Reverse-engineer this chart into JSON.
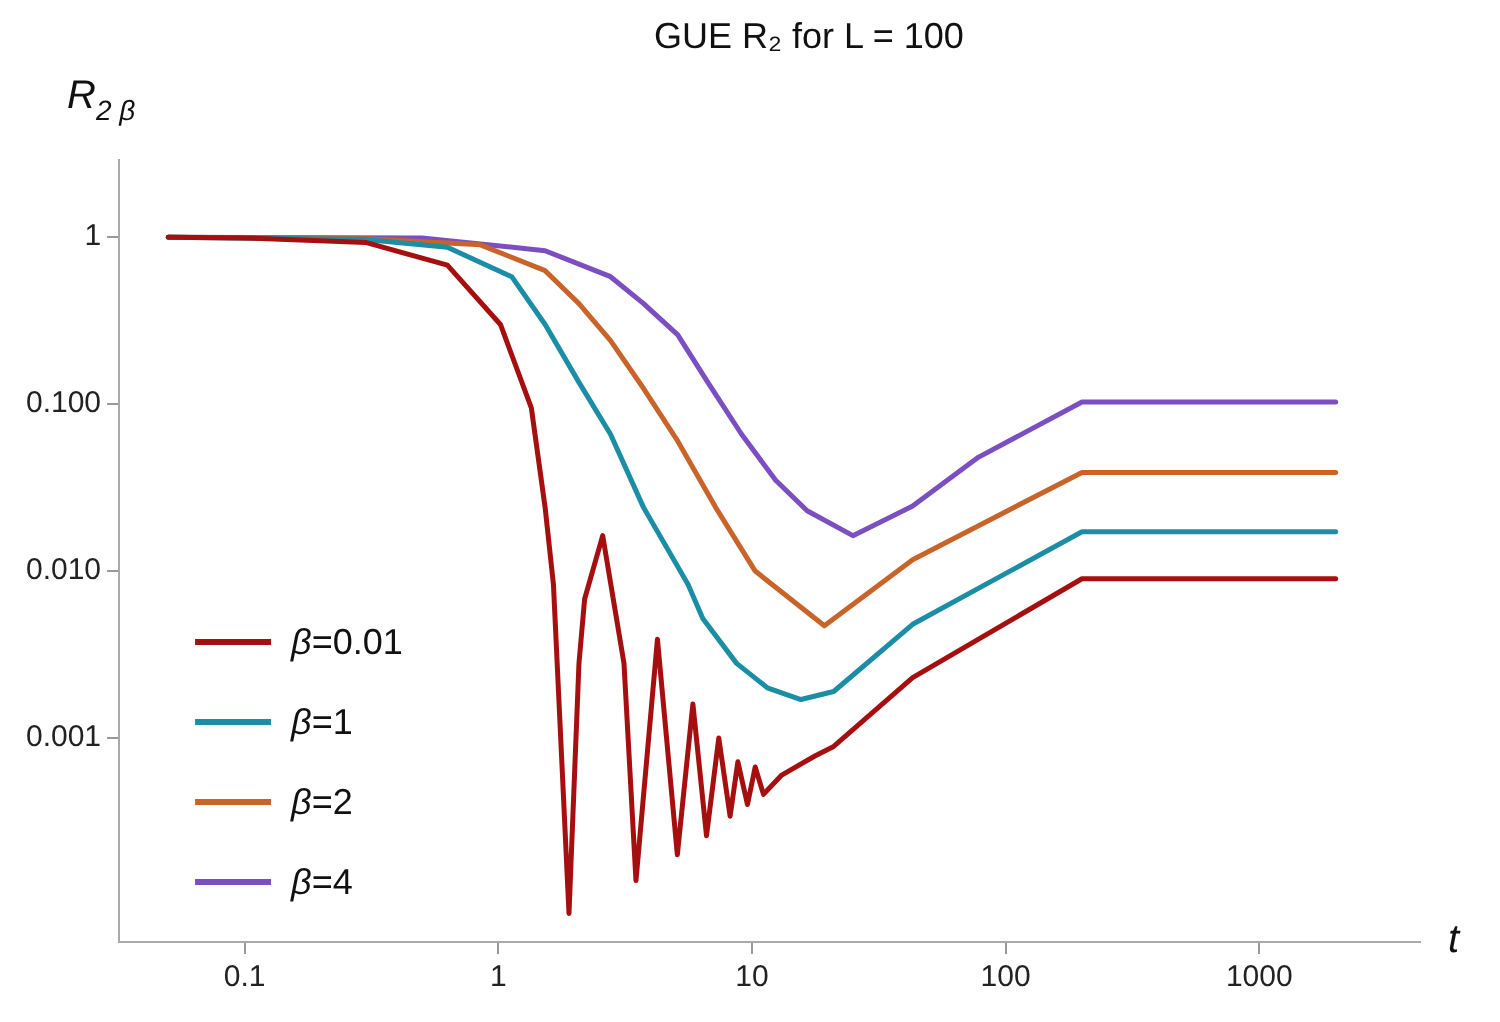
{
  "chart_data": {
    "type": "line",
    "title": "GUE R₂ for L = 100",
    "xlabel": "t",
    "ylabel": "R$_{2 β}$",
    "log": "xy",
    "grid": false,
    "legend": "bottom left",
    "marker": "none",
    "line_style": "solid",
    "xlim": [
      0.032,
      4300
    ],
    "xticks": [
      0.1,
      1,
      10,
      100,
      1000
    ],
    "ylim": [
      6e-05,
      2.9
    ],
    "yticks": [
      {
        "value": 1,
        "label": "1"
      },
      {
        "value": 0.1,
        "label": "0.100"
      },
      {
        "value": 0.01,
        "label": "0.010"
      },
      {
        "value": 0.001,
        "label": "0.001"
      }
    ],
    "series": [
      {
        "name": "β=0.01",
        "color": "#a50f0f",
        "x": [
          0.05,
          0.1,
          0.3,
          0.63,
          1.02,
          1.35,
          1.53,
          1.65,
          1.9,
          2.08,
          2.19,
          2.58,
          3.13,
          3.49,
          4.24,
          5.08,
          5.85,
          6.62,
          7.4,
          8.2,
          8.8,
          9.6,
          10.3,
          11.1,
          13.1,
          17.7,
          21,
          43,
          200,
          2000
        ],
        "values": [
          1,
          0.99,
          0.93,
          0.68,
          0.3,
          0.095,
          0.024,
          0.0083,
          8.9e-05,
          0.0028,
          0.0068,
          0.0163,
          0.0028,
          0.00014,
          0.0039,
          0.0002,
          0.0016,
          0.00026,
          0.001,
          0.00034,
          0.00072,
          0.0004,
          0.00067,
          0.00046,
          0.0006,
          0.00078,
          0.00089,
          0.0023,
          0.009,
          0.009
        ]
      },
      {
        "name": "β=1",
        "color": "#1b8ea5",
        "x": [
          0.05,
          0.3,
          0.63,
          1.13,
          1.53,
          2.08,
          2.77,
          3.74,
          5.6,
          6.4,
          8.7,
          11.5,
          15.6,
          21,
          43,
          200,
          2000
        ],
        "values": [
          1,
          0.97,
          0.87,
          0.58,
          0.3,
          0.135,
          0.066,
          0.024,
          0.0083,
          0.0052,
          0.0028,
          0.002,
          0.0017,
          0.0019,
          0.0048,
          0.0172,
          0.0172
        ]
      },
      {
        "name": "β=2",
        "color": "#c8642a",
        "x": [
          0.05,
          0.3,
          0.85,
          1.53,
          2.08,
          2.77,
          3.74,
          5.1,
          7.2,
          10.3,
          19.3,
          43,
          200,
          2000
        ],
        "values": [
          1,
          0.98,
          0.9,
          0.63,
          0.4,
          0.24,
          0.124,
          0.06,
          0.024,
          0.01,
          0.0047,
          0.0117,
          0.039,
          0.039
        ]
      },
      {
        "name": "β=4",
        "color": "#7b4fc0",
        "x": [
          0.05,
          0.5,
          1.53,
          2.77,
          3.74,
          5.1,
          6.7,
          9.1,
          12.4,
          16.5,
          25,
          43,
          78,
          200,
          2000
        ],
        "values": [
          1,
          0.99,
          0.83,
          0.58,
          0.4,
          0.26,
          0.135,
          0.066,
          0.035,
          0.023,
          0.0163,
          0.0245,
          0.048,
          0.103,
          0.103
        ]
      }
    ]
  }
}
